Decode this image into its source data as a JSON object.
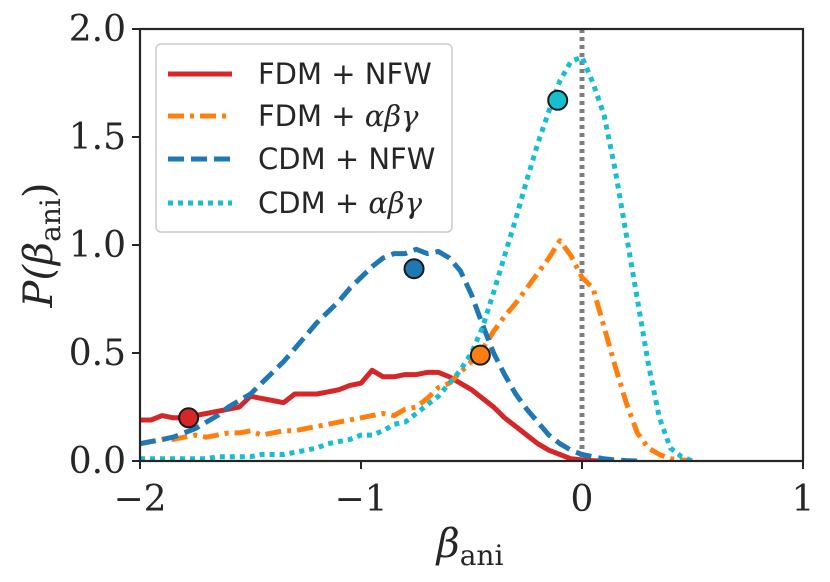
{
  "chart_data": {
    "type": "line",
    "xlabel": "β",
    "xlabel_sub": "ani",
    "ylabel": "P(β",
    "ylabel_sub": "ani",
    "ylabel_close": ")",
    "xlim": [
      -2,
      1
    ],
    "ylim": [
      0,
      2
    ],
    "xticks": [
      {
        "value": -2,
        "label": "−2"
      },
      {
        "value": -1,
        "label": "−1"
      },
      {
        "value": 0,
        "label": "0"
      },
      {
        "value": 1,
        "label": "1"
      }
    ],
    "yticks": [
      {
        "value": 0,
        "label": "0.0"
      },
      {
        "value": 0.5,
        "label": "0.5"
      },
      {
        "value": 1.0,
        "label": "1.0"
      },
      {
        "value": 1.5,
        "label": "1.5"
      },
      {
        "value": 2.0,
        "label": "2.0"
      }
    ],
    "reference_line": {
      "x": 0,
      "color": "#808080",
      "style": "dotted"
    },
    "legend_position": "upper-left",
    "series": [
      {
        "name": "FDM + NFW",
        "legend_prefix": "FDM + NFW",
        "legend_math": "",
        "color": "#d62728",
        "style": "solid",
        "marker": {
          "x": -1.78,
          "y": 0.2
        },
        "x": [
          -2.0,
          -1.95,
          -1.9,
          -1.85,
          -1.8,
          -1.75,
          -1.7,
          -1.65,
          -1.6,
          -1.55,
          -1.5,
          -1.45,
          -1.4,
          -1.35,
          -1.3,
          -1.25,
          -1.2,
          -1.15,
          -1.1,
          -1.05,
          -1.0,
          -0.95,
          -0.9,
          -0.85,
          -0.8,
          -0.75,
          -0.7,
          -0.65,
          -0.6,
          -0.55,
          -0.5,
          -0.45,
          -0.4,
          -0.35,
          -0.3,
          -0.25,
          -0.2,
          -0.15,
          -0.1,
          -0.05,
          0.0,
          0.05,
          0.1
        ],
        "values": [
          0.19,
          0.19,
          0.21,
          0.2,
          0.2,
          0.21,
          0.22,
          0.23,
          0.24,
          0.25,
          0.3,
          0.29,
          0.28,
          0.27,
          0.31,
          0.31,
          0.31,
          0.32,
          0.33,
          0.35,
          0.36,
          0.42,
          0.39,
          0.39,
          0.4,
          0.4,
          0.41,
          0.41,
          0.39,
          0.36,
          0.33,
          0.29,
          0.25,
          0.2,
          0.16,
          0.12,
          0.08,
          0.05,
          0.03,
          0.01,
          0.005,
          0.002,
          0.0
        ]
      },
      {
        "name": "FDM + αβγ",
        "legend_prefix": "FDM + ",
        "legend_math": "αβγ",
        "color": "#ff7f0e",
        "style": "dashdot",
        "marker": {
          "x": -0.46,
          "y": 0.49
        },
        "x": [
          -2.0,
          -1.95,
          -1.9,
          -1.85,
          -1.8,
          -1.75,
          -1.7,
          -1.65,
          -1.6,
          -1.55,
          -1.5,
          -1.45,
          -1.4,
          -1.35,
          -1.3,
          -1.25,
          -1.2,
          -1.15,
          -1.1,
          -1.05,
          -1.0,
          -0.95,
          -0.9,
          -0.85,
          -0.8,
          -0.75,
          -0.7,
          -0.65,
          -0.6,
          -0.55,
          -0.5,
          -0.45,
          -0.4,
          -0.35,
          -0.3,
          -0.25,
          -0.2,
          -0.15,
          -0.1,
          -0.05,
          0.0,
          0.05,
          0.1,
          0.15,
          0.2,
          0.25,
          0.3,
          0.35,
          0.4,
          0.45,
          0.5
        ],
        "values": [
          0.08,
          0.09,
          0.1,
          0.1,
          0.11,
          0.12,
          0.11,
          0.12,
          0.13,
          0.13,
          0.14,
          0.12,
          0.13,
          0.14,
          0.14,
          0.15,
          0.16,
          0.17,
          0.18,
          0.19,
          0.2,
          0.21,
          0.22,
          0.21,
          0.24,
          0.25,
          0.29,
          0.34,
          0.36,
          0.41,
          0.46,
          0.52,
          0.6,
          0.67,
          0.73,
          0.8,
          0.87,
          0.94,
          1.02,
          0.95,
          0.85,
          0.8,
          0.62,
          0.44,
          0.27,
          0.13,
          0.06,
          0.03,
          0.01,
          0.005,
          0.0
        ]
      },
      {
        "name": "CDM + NFW",
        "legend_prefix": "CDM + NFW",
        "legend_math": "",
        "color": "#1f77b4",
        "style": "dashed",
        "marker": {
          "x": -0.76,
          "y": 0.89
        },
        "x": [
          -2.0,
          -1.95,
          -1.9,
          -1.85,
          -1.8,
          -1.75,
          -1.7,
          -1.65,
          -1.6,
          -1.55,
          -1.5,
          -1.45,
          -1.4,
          -1.35,
          -1.3,
          -1.25,
          -1.2,
          -1.15,
          -1.1,
          -1.05,
          -1.0,
          -0.95,
          -0.9,
          -0.85,
          -0.8,
          -0.75,
          -0.7,
          -0.65,
          -0.6,
          -0.55,
          -0.5,
          -0.45,
          -0.4,
          -0.35,
          -0.3,
          -0.25,
          -0.2,
          -0.15,
          -0.1,
          -0.05,
          0.0,
          0.05,
          0.1,
          0.15,
          0.2,
          0.25
        ],
        "values": [
          0.08,
          0.09,
          0.1,
          0.11,
          0.13,
          0.15,
          0.18,
          0.21,
          0.25,
          0.28,
          0.31,
          0.36,
          0.41,
          0.46,
          0.52,
          0.58,
          0.64,
          0.69,
          0.74,
          0.8,
          0.85,
          0.9,
          0.94,
          0.96,
          0.96,
          0.98,
          0.96,
          0.97,
          0.94,
          0.88,
          0.77,
          0.63,
          0.5,
          0.4,
          0.31,
          0.24,
          0.18,
          0.12,
          0.08,
          0.05,
          0.03,
          0.02,
          0.01,
          0.005,
          0.002,
          0.0
        ]
      },
      {
        "name": "CDM + αβγ",
        "legend_prefix": "CDM + ",
        "legend_math": "αβγ",
        "color": "#17becf",
        "style": "dotted",
        "marker": {
          "x": -0.11,
          "y": 1.67
        },
        "x": [
          -2.0,
          -1.95,
          -1.9,
          -1.85,
          -1.8,
          -1.75,
          -1.7,
          -1.65,
          -1.6,
          -1.55,
          -1.5,
          -1.45,
          -1.4,
          -1.35,
          -1.3,
          -1.25,
          -1.2,
          -1.15,
          -1.1,
          -1.05,
          -1.0,
          -0.95,
          -0.9,
          -0.85,
          -0.8,
          -0.75,
          -0.7,
          -0.65,
          -0.6,
          -0.55,
          -0.5,
          -0.45,
          -0.4,
          -0.35,
          -0.3,
          -0.25,
          -0.2,
          -0.15,
          -0.1,
          -0.05,
          0.0,
          0.05,
          0.1,
          0.15,
          0.2,
          0.25,
          0.3,
          0.35,
          0.4,
          0.45,
          0.5
        ],
        "values": [
          0.01,
          0.01,
          0.01,
          0.01,
          0.01,
          0.01,
          0.01,
          0.02,
          0.02,
          0.02,
          0.02,
          0.03,
          0.03,
          0.03,
          0.04,
          0.05,
          0.06,
          0.08,
          0.09,
          0.1,
          0.12,
          0.12,
          0.14,
          0.17,
          0.18,
          0.22,
          0.26,
          0.3,
          0.36,
          0.42,
          0.5,
          0.62,
          0.78,
          0.95,
          1.12,
          1.3,
          1.47,
          1.62,
          1.76,
          1.85,
          1.87,
          1.75,
          1.6,
          1.35,
          1.05,
          0.75,
          0.45,
          0.2,
          0.06,
          0.02,
          0.0
        ]
      }
    ]
  }
}
